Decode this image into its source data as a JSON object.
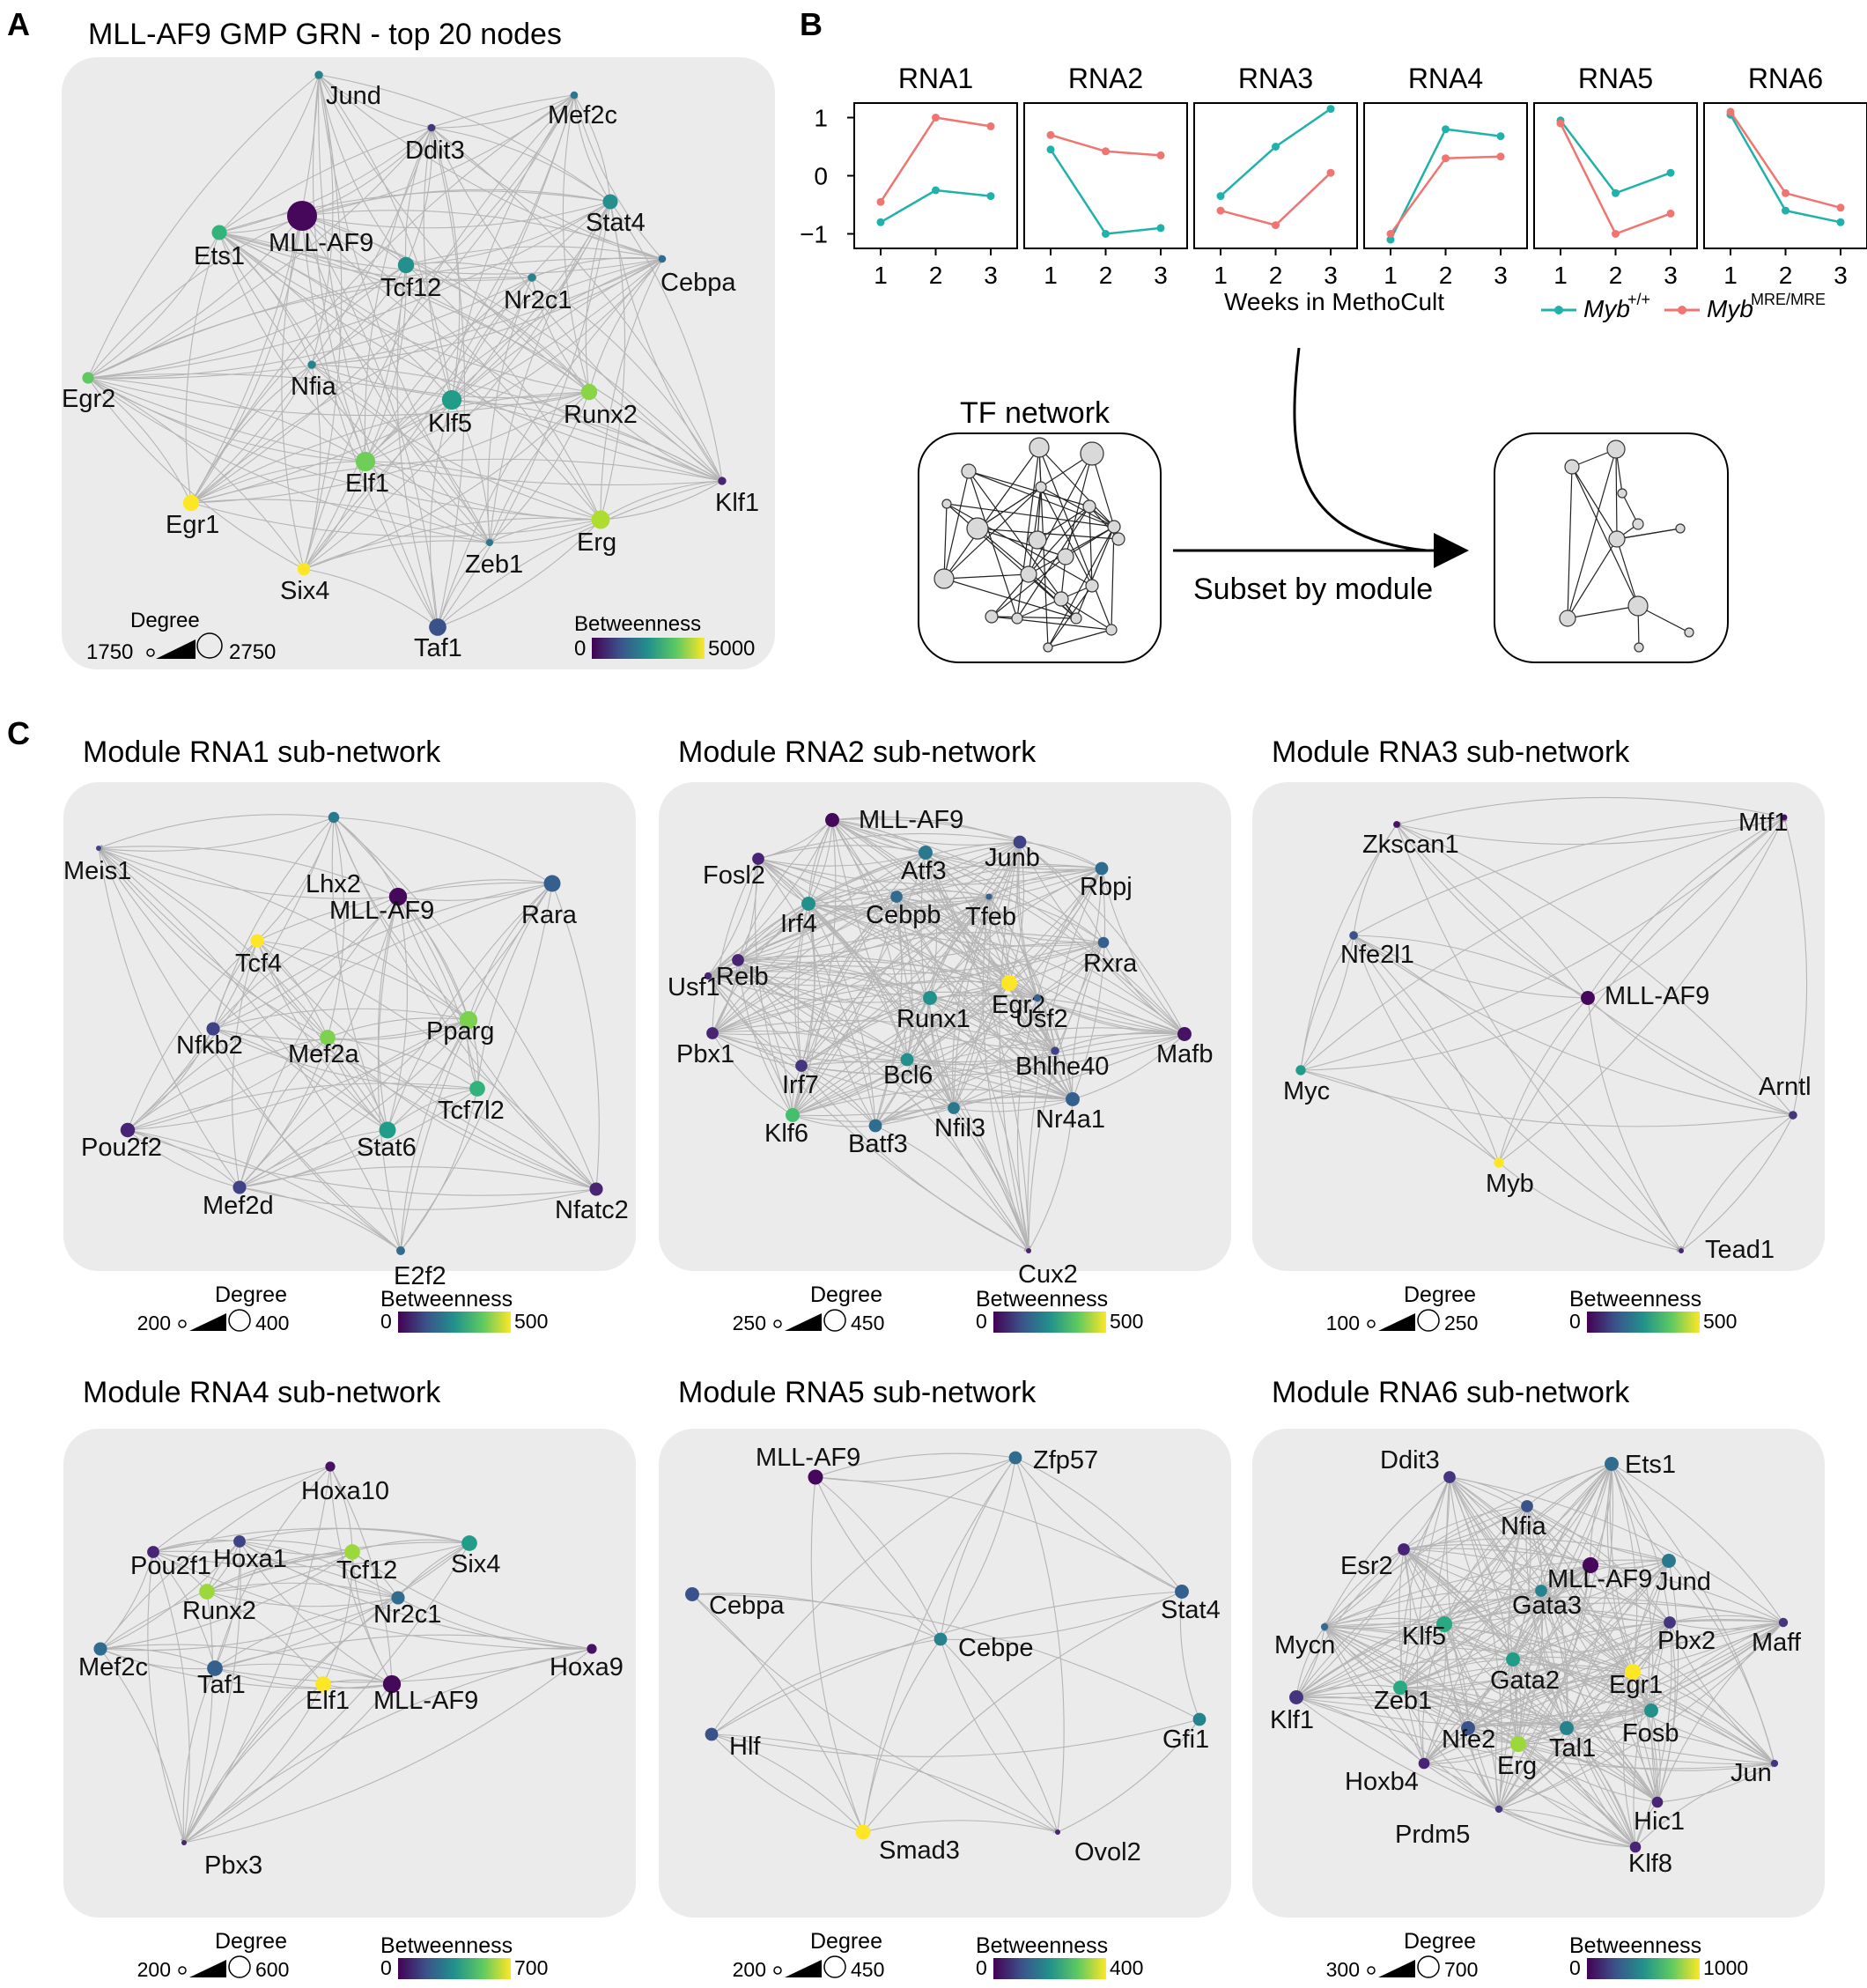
{
  "panels": {
    "a": {
      "letter": "A",
      "title": "MLL-AF9 GMP GRN - top 20 nodes",
      "nodes": [
        {
          "label": "Jund",
          "b": 0.45,
          "d": 0.05
        },
        {
          "label": "Mef2c",
          "b": 0.4,
          "d": 0.02
        },
        {
          "label": "Ddit3",
          "b": 0.15,
          "d": 0.02
        },
        {
          "label": "MLL-AF9",
          "b": 0.02,
          "d": 1.0
        },
        {
          "label": "Stat4",
          "b": 0.5,
          "d": 0.35
        },
        {
          "label": "Ets1",
          "b": 0.65,
          "d": 0.35
        },
        {
          "label": "Tcf12",
          "b": 0.5,
          "d": 0.4
        },
        {
          "label": "Nr2c1",
          "b": 0.45,
          "d": 0.05
        },
        {
          "label": "Cebpa",
          "b": 0.35,
          "d": 0.02
        },
        {
          "label": "Egr2",
          "b": 0.75,
          "d": 0.2
        },
        {
          "label": "Nfia",
          "b": 0.45,
          "d": 0.05
        },
        {
          "label": "Klf5",
          "b": 0.55,
          "d": 0.55
        },
        {
          "label": "Runx2",
          "b": 0.82,
          "d": 0.4
        },
        {
          "label": "Elf1",
          "b": 0.78,
          "d": 0.55
        },
        {
          "label": "Klf1",
          "b": 0.1,
          "d": 0.05
        },
        {
          "label": "Egr1",
          "b": 1.0,
          "d": 0.4
        },
        {
          "label": "Erg",
          "b": 0.88,
          "d": 0.5
        },
        {
          "label": "Zeb1",
          "b": 0.4,
          "d": 0.0
        },
        {
          "label": "Six4",
          "b": 1.0,
          "d": 0.25
        },
        {
          "label": "Taf1",
          "b": 0.25,
          "d": 0.45
        }
      ],
      "legend": {
        "degree_title": "Degree",
        "degree_min": "1750",
        "degree_max": "2750",
        "betweenness_title": "Betweenness",
        "betweenness_min": "0",
        "betweenness_max": "5000"
      }
    },
    "b": {
      "letter": "B",
      "xlabel": "Weeks in MethoCult",
      "yticks": [
        "1",
        "0",
        "−1"
      ],
      "xticks": [
        "1",
        "2",
        "3"
      ],
      "legend": [
        {
          "name": "Myb",
          "sup": "+/+",
          "color": "#20b2aa"
        },
        {
          "name": "Myb",
          "sup": "MRE/MRE",
          "color": "#f07470"
        }
      ],
      "facets": [
        {
          "title": "RNA1",
          "teal": [
            -0.8,
            -0.25,
            -0.35
          ],
          "red": [
            -0.45,
            1.0,
            0.85
          ]
        },
        {
          "title": "RNA2",
          "teal": [
            0.45,
            -1.0,
            -0.9
          ],
          "red": [
            0.7,
            0.42,
            0.35
          ]
        },
        {
          "title": "RNA3",
          "teal": [
            -0.35,
            0.5,
            1.15
          ],
          "red": [
            -0.6,
            -0.85,
            0.05
          ]
        },
        {
          "title": "RNA4",
          "teal": [
            -1.1,
            0.8,
            0.68
          ],
          "red": [
            -1.0,
            0.3,
            0.33
          ]
        },
        {
          "title": "RNA5",
          "teal": [
            0.95,
            -0.3,
            0.05
          ],
          "red": [
            0.9,
            -1.0,
            -0.65
          ]
        },
        {
          "title": "RNA6",
          "teal": [
            1.05,
            -0.6,
            -0.8
          ],
          "red": [
            1.1,
            -0.3,
            -0.55
          ]
        }
      ],
      "tf_network_label": "TF network",
      "subset_label": "Subset by module"
    },
    "c": {
      "letter": "C",
      "modules": [
        {
          "title": "Module RNA1 sub-network",
          "nodes": [
            {
              "label": "Meis1",
              "b": 0.2,
              "d": 0.0
            },
            {
              "label": "Lhx2",
              "b": 0.4,
              "d": 0.25
            },
            {
              "label": "MLL-AF9",
              "b": 0.02,
              "d": 0.55
            },
            {
              "label": "Rara",
              "b": 0.3,
              "d": 0.5
            },
            {
              "label": "Tcf4",
              "b": 1.0,
              "d": 0.35
            },
            {
              "label": "Nfkb2",
              "b": 0.2,
              "d": 0.35
            },
            {
              "label": "Mef2a",
              "b": 0.8,
              "d": 0.45
            },
            {
              "label": "Pparg",
              "b": 0.8,
              "d": 0.55
            },
            {
              "label": "Tcf7l2",
              "b": 0.65,
              "d": 0.45
            },
            {
              "label": "Stat6",
              "b": 0.55,
              "d": 0.5
            },
            {
              "label": "Pou2f2",
              "b": 0.1,
              "d": 0.4
            },
            {
              "label": "Mef2d",
              "b": 0.2,
              "d": 0.35
            },
            {
              "label": "E2f2",
              "b": 0.35,
              "d": 0.15
            },
            {
              "label": "Nfatc2",
              "b": 0.1,
              "d": 0.35
            }
          ],
          "legend": {
            "degree_title": "Degree",
            "degree_min": "200",
            "degree_max": "400",
            "betweenness_title": "Betweenness",
            "betweenness_min": "0",
            "betweenness_max": "500"
          }
        },
        {
          "title": "Module RNA2 sub-network",
          "nodes": [
            {
              "label": "MLL-AF9",
              "b": 0.02,
              "d": 0.45
            },
            {
              "label": "Fosl2",
              "b": 0.1,
              "d": 0.35
            },
            {
              "label": "Atf3",
              "b": 0.4,
              "d": 0.45
            },
            {
              "label": "Junb",
              "b": 0.2,
              "d": 0.4
            },
            {
              "label": "Rbpj",
              "b": 0.35,
              "d": 0.4
            },
            {
              "label": "Irf4",
              "b": 0.5,
              "d": 0.45
            },
            {
              "label": "Cebpb",
              "b": 0.35,
              "d": 0.35
            },
            {
              "label": "Tfeb",
              "b": 0.3,
              "d": 0.05
            },
            {
              "label": "Relb",
              "b": 0.1,
              "d": 0.35
            },
            {
              "label": "Usf1",
              "b": 0.1,
              "d": 0.1
            },
            {
              "label": "Rxra",
              "b": 0.3,
              "d": 0.3
            },
            {
              "label": "Egr2",
              "b": 1.0,
              "d": 0.55
            },
            {
              "label": "Runx1",
              "b": 0.5,
              "d": 0.45
            },
            {
              "label": "Usf2",
              "b": 0.3,
              "d": 0.1
            },
            {
              "label": "Mafb",
              "b": 0.05,
              "d": 0.45
            },
            {
              "label": "Pbx1",
              "b": 0.1,
              "d": 0.35
            },
            {
              "label": "Bhlhe40",
              "b": 0.2,
              "d": 0.15
            },
            {
              "label": "Bcl6",
              "b": 0.5,
              "d": 0.4
            },
            {
              "label": "Irf7",
              "b": 0.15,
              "d": 0.35
            },
            {
              "label": "Nr4a1",
              "b": 0.3,
              "d": 0.45
            },
            {
              "label": "Nfil3",
              "b": 0.4,
              "d": 0.35
            },
            {
              "label": "Klf6",
              "b": 0.7,
              "d": 0.45
            },
            {
              "label": "Batf3",
              "b": 0.35,
              "d": 0.4
            },
            {
              "label": "Cux2",
              "b": 0.1,
              "d": 0.0
            }
          ],
          "legend": {
            "degree_title": "Degree",
            "degree_min": "250",
            "degree_max": "450",
            "betweenness_title": "Betweenness",
            "betweenness_min": "0",
            "betweenness_max": "500"
          }
        },
        {
          "title": "Module RNA3 sub-network",
          "nodes": [
            {
              "label": "Zkscan1",
              "b": 0.05,
              "d": 0.1
            },
            {
              "label": "Mtf1",
              "b": 0.05,
              "d": 0.05
            },
            {
              "label": "Nfe2l1",
              "b": 0.25,
              "d": 0.2
            },
            {
              "label": "MLL-AF9",
              "b": 0.02,
              "d": 0.55
            },
            {
              "label": "Myc",
              "b": 0.55,
              "d": 0.3
            },
            {
              "label": "Arntl",
              "b": 0.15,
              "d": 0.2
            },
            {
              "label": "Myb",
              "b": 1.0,
              "d": 0.3
            },
            {
              "label": "Tead1",
              "b": 0.1,
              "d": 0.0
            }
          ],
          "legend": {
            "degree_title": "Degree",
            "degree_min": "100",
            "degree_max": "250",
            "betweenness_title": "Betweenness",
            "betweenness_min": "0",
            "betweenness_max": "500"
          }
        },
        {
          "title": "Module RNA4 sub-network",
          "nodes": [
            {
              "label": "Hoxa10",
              "b": 0.05,
              "d": 0.2
            },
            {
              "label": "Hoxa1",
              "b": 0.2,
              "d": 0.3
            },
            {
              "label": "Pou2f1",
              "b": 0.1,
              "d": 0.3
            },
            {
              "label": "Tcf12",
              "b": 0.85,
              "d": 0.45
            },
            {
              "label": "Six4",
              "b": 0.55,
              "d": 0.45
            },
            {
              "label": "Runx2",
              "b": 0.85,
              "d": 0.45
            },
            {
              "label": "Nr2c1",
              "b": 0.35,
              "d": 0.35
            },
            {
              "label": "Mef2c",
              "b": 0.35,
              "d": 0.35
            },
            {
              "label": "Taf1",
              "b": 0.3,
              "d": 0.45
            },
            {
              "label": "Elf1",
              "b": 1.0,
              "d": 0.45
            },
            {
              "label": "MLL-AF9",
              "b": 0.02,
              "d": 0.55
            },
            {
              "label": "Hoxa9",
              "b": 0.05,
              "d": 0.2
            },
            {
              "label": "Pbx3",
              "b": 0.1,
              "d": 0.0
            }
          ],
          "legend": {
            "degree_title": "Degree",
            "degree_min": "200",
            "degree_max": "600",
            "betweenness_title": "Betweenness",
            "betweenness_min": "0",
            "betweenness_max": "700"
          }
        },
        {
          "title": "Module RNA5 sub-network",
          "nodes": [
            {
              "label": "MLL-AF9",
              "b": 0.02,
              "d": 0.5
            },
            {
              "label": "Zfp57",
              "b": 0.35,
              "d": 0.4
            },
            {
              "label": "Cebpa",
              "b": 0.25,
              "d": 0.45
            },
            {
              "label": "Cebpe",
              "b": 0.45,
              "d": 0.4
            },
            {
              "label": "Stat4",
              "b": 0.3,
              "d": 0.45
            },
            {
              "label": "Hlf",
              "b": 0.25,
              "d": 0.4
            },
            {
              "label": "Gfi1",
              "b": 0.45,
              "d": 0.4
            },
            {
              "label": "Smad3",
              "b": 1.0,
              "d": 0.5
            },
            {
              "label": "Ovol2",
              "b": 0.1,
              "d": 0.0
            }
          ],
          "legend": {
            "degree_title": "Degree",
            "degree_min": "200",
            "degree_max": "450",
            "betweenness_title": "Betweenness",
            "betweenness_min": "0",
            "betweenness_max": "400"
          }
        },
        {
          "title": "Module RNA6 sub-network",
          "nodes": [
            {
              "label": "Ddit3",
              "b": 0.15,
              "d": 0.35
            },
            {
              "label": "Ets1",
              "b": 0.35,
              "d": 0.45
            },
            {
              "label": "Nfia",
              "b": 0.25,
              "d": 0.35
            },
            {
              "label": "Esr2",
              "b": 0.1,
              "d": 0.35
            },
            {
              "label": "Jund",
              "b": 0.4,
              "d": 0.45
            },
            {
              "label": "MLL-AF9",
              "b": 0.02,
              "d": 0.55
            },
            {
              "label": "Gata3",
              "b": 0.45,
              "d": 0.35
            },
            {
              "label": "Mycn",
              "b": 0.35,
              "d": 0.1
            },
            {
              "label": "Klf5",
              "b": 0.6,
              "d": 0.55
            },
            {
              "label": "Pbx2",
              "b": 0.15,
              "d": 0.35
            },
            {
              "label": "Maff",
              "b": 0.15,
              "d": 0.2
            },
            {
              "label": "Egr1",
              "b": 1.0,
              "d": 0.55
            },
            {
              "label": "Gata2",
              "b": 0.55,
              "d": 0.45
            },
            {
              "label": "Klf1",
              "b": 0.15,
              "d": 0.45
            },
            {
              "label": "Zeb1",
              "b": 0.6,
              "d": 0.45
            },
            {
              "label": "Fosb",
              "b": 0.5,
              "d": 0.45
            },
            {
              "label": "Nfe2",
              "b": 0.25,
              "d": 0.45
            },
            {
              "label": "Tal1",
              "b": 0.45,
              "d": 0.45
            },
            {
              "label": "Erg",
              "b": 0.85,
              "d": 0.55
            },
            {
              "label": "Hoxb4",
              "b": 0.1,
              "d": 0.3
            },
            {
              "label": "Jun",
              "b": 0.15,
              "d": 0.1
            },
            {
              "label": "Hic1",
              "b": 0.1,
              "d": 0.3
            },
            {
              "label": "Prdm5",
              "b": 0.15,
              "d": 0.1
            },
            {
              "label": "Klf8",
              "b": 0.1,
              "d": 0.3
            }
          ],
          "legend": {
            "degree_title": "Degree",
            "degree_min": "300",
            "degree_max": "700",
            "betweenness_title": "Betweenness",
            "betweenness_min": "0",
            "betweenness_max": "1000"
          }
        }
      ]
    }
  }
}
